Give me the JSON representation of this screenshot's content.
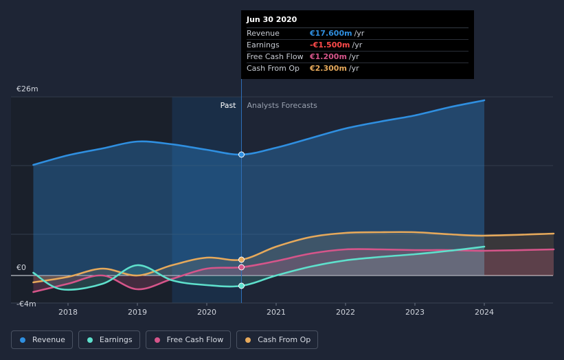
{
  "chart_data": {
    "type": "area",
    "y_axis_labels": [
      "€26m",
      "€0",
      "-€4m"
    ],
    "ylim": [
      -4,
      26
    ],
    "x_ticks": [
      "2018",
      "2019",
      "2020",
      "2021",
      "2022",
      "2023",
      "2024"
    ],
    "past_label": "Past",
    "forecast_label": "Analysts Forecasts",
    "divider_x": 2020.5,
    "series": [
      {
        "name": "Revenue",
        "color": "#2f8fe0",
        "points": [
          [
            2017.5,
            16.1
          ],
          [
            2018.0,
            17.5
          ],
          [
            2018.5,
            18.5
          ],
          [
            2019.0,
            19.5
          ],
          [
            2019.5,
            19.1
          ],
          [
            2020.0,
            18.3
          ],
          [
            2020.5,
            17.6
          ],
          [
            2021.0,
            18.6
          ],
          [
            2021.5,
            20.0
          ],
          [
            2022.0,
            21.4
          ],
          [
            2022.5,
            22.4
          ],
          [
            2023.0,
            23.3
          ],
          [
            2023.5,
            24.5
          ],
          [
            2024.0,
            25.5
          ]
        ]
      },
      {
        "name": "Earnings",
        "color": "#5ee0cc",
        "points": [
          [
            2017.5,
            0.4
          ],
          [
            2017.9,
            -2.0
          ],
          [
            2018.5,
            -1.2
          ],
          [
            2019.0,
            1.5
          ],
          [
            2019.5,
            -0.7
          ],
          [
            2020.0,
            -1.4
          ],
          [
            2020.5,
            -1.5
          ],
          [
            2021.0,
            0.0
          ],
          [
            2021.5,
            1.3
          ],
          [
            2022.0,
            2.2
          ],
          [
            2022.5,
            2.7
          ],
          [
            2023.0,
            3.1
          ],
          [
            2023.5,
            3.6
          ],
          [
            2024.0,
            4.2
          ]
        ]
      },
      {
        "name": "Free Cash Flow",
        "color": "#d6558a",
        "points": [
          [
            2017.5,
            -2.4
          ],
          [
            2018.0,
            -1.2
          ],
          [
            2018.5,
            0.0
          ],
          [
            2019.0,
            -2.0
          ],
          [
            2019.5,
            -0.5
          ],
          [
            2020.0,
            1.0
          ],
          [
            2020.5,
            1.2
          ],
          [
            2021.0,
            2.1
          ],
          [
            2021.5,
            3.2
          ],
          [
            2022.0,
            3.8
          ],
          [
            2022.5,
            3.8
          ],
          [
            2023.0,
            3.7
          ],
          [
            2023.5,
            3.7
          ],
          [
            2024.0,
            3.6
          ],
          [
            2025.0,
            3.8
          ]
        ]
      },
      {
        "name": "Cash From Op",
        "color": "#e6a95b",
        "points": [
          [
            2017.5,
            -1.0
          ],
          [
            2018.0,
            -0.2
          ],
          [
            2018.5,
            1.0
          ],
          [
            2019.0,
            0.0
          ],
          [
            2019.5,
            1.5
          ],
          [
            2020.0,
            2.6
          ],
          [
            2020.5,
            2.3
          ],
          [
            2021.0,
            4.2
          ],
          [
            2021.5,
            5.6
          ],
          [
            2022.0,
            6.2
          ],
          [
            2022.5,
            6.3
          ],
          [
            2023.0,
            6.3
          ],
          [
            2023.5,
            6.0
          ],
          [
            2024.0,
            5.8
          ],
          [
            2025.0,
            6.1
          ]
        ]
      }
    ]
  },
  "tooltip": {
    "date": "Jun 30 2020",
    "rows": [
      {
        "label": "Revenue",
        "value": "€17.600m",
        "unit": "/yr",
        "color": "#2f8fe0"
      },
      {
        "label": "Earnings",
        "value": "-€1.500m",
        "unit": "/yr",
        "color": "#ff4a4a"
      },
      {
        "label": "Free Cash Flow",
        "value": "€1.200m",
        "unit": "/yr",
        "color": "#d6558a"
      },
      {
        "label": "Cash From Op",
        "value": "€2.300m",
        "unit": "/yr",
        "color": "#e6a95b"
      }
    ]
  },
  "legend": [
    {
      "label": "Revenue",
      "color": "#2f8fe0"
    },
    {
      "label": "Earnings",
      "color": "#5ee0cc"
    },
    {
      "label": "Free Cash Flow",
      "color": "#d6558a"
    },
    {
      "label": "Cash From Op",
      "color": "#e6a95b"
    }
  ]
}
